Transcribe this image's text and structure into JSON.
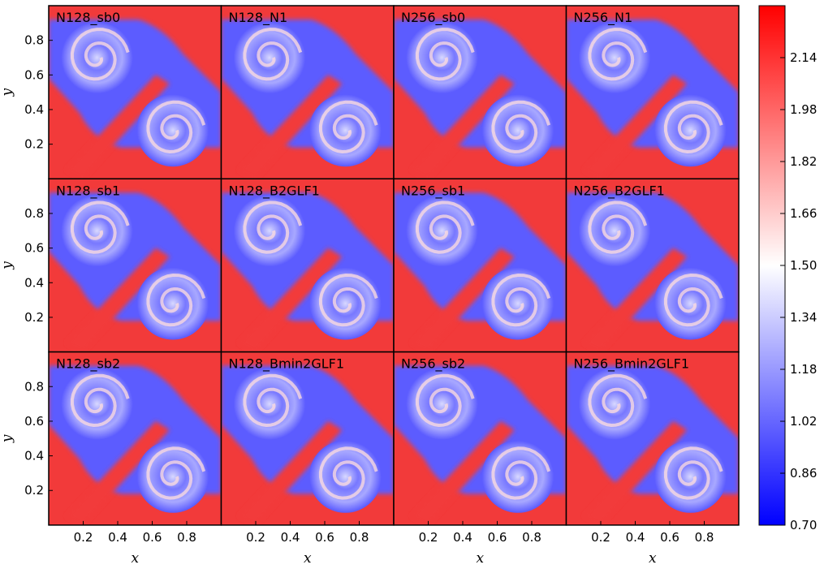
{
  "chart_data": {
    "type": "heatmap",
    "grid": {
      "rows": 3,
      "cols": 4
    },
    "panels": [
      {
        "label": "N128_sb0"
      },
      {
        "label": "N128_N1"
      },
      {
        "label": "N256_sb0"
      },
      {
        "label": "N256_N1"
      },
      {
        "label": "N128_sb1"
      },
      {
        "label": "N128_B2GLF1"
      },
      {
        "label": "N256_sb1"
      },
      {
        "label": "N256_B2GLF1"
      },
      {
        "label": "N128_sb2"
      },
      {
        "label": "N128_Bmin2GLF1"
      },
      {
        "label": "N256_sb2"
      },
      {
        "label": "N256_Bmin2GLF1"
      }
    ],
    "xlabel": "x",
    "ylabel": "y",
    "xlim": [
      0,
      1
    ],
    "ylim": [
      0,
      1
    ],
    "xticks": [
      "0.2",
      "0.4",
      "0.6",
      "0.8"
    ],
    "yticks": [
      "0.2",
      "0.4",
      "0.6",
      "0.8"
    ],
    "colorbar": {
      "min": 0.7,
      "max": 2.3,
      "ticks": [
        "0.70",
        "0.86",
        "1.02",
        "1.18",
        "1.34",
        "1.50",
        "1.66",
        "1.82",
        "1.98",
        "2.14"
      ],
      "colors": [
        "#0000ff",
        "#ffffff",
        "#ff0000"
      ]
    }
  }
}
